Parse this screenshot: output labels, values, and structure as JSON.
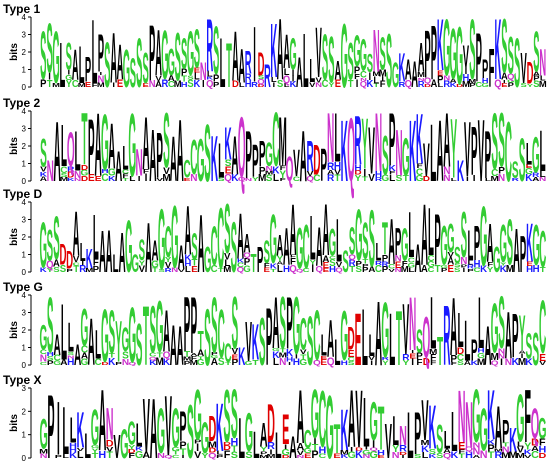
{
  "figure": {
    "panels": [
      {
        "title": "Type 1",
        "ylabel": "bits",
        "yticks": [
          "0",
          "1",
          "2",
          "3",
          "4"
        ],
        "sequence": "SSGLSALPLPSAAGSSSPAGGSSGSNRSLTAARIDRKAAGALLVSSAGSGGSNSSGKAAAPPKGGGVSPPFKSSSVDSN"
      },
      {
        "title": "Type 2",
        "ylabel": "bits",
        "yticks": [
          "0",
          "1",
          "2",
          "3",
          "4"
        ],
        "sequence": "SNALQLTPAGAALGNAAPSAACCGSKLKAQPPPGCMQVARDPNLKQRYVNSPNGKKVLAAYKVPVPSSCSSLGL"
      },
      {
        "title": "Type D",
        "ylabel": "bits",
        "yticks": [
          "0",
          "1",
          "2",
          "3",
          "4"
        ],
        "sequence": "GSSDDALKLAALAGGSAAGCGAASAGCCSSAATPSGAAAGCLAAGLSSGSSLTAPGLAALPGGSSLPGAGGSAPKGC"
      },
      {
        "title": "Type G",
        "ylabel": "bits",
        "yticks": [
          "0",
          "1",
          "2",
          "3",
          "4"
        ],
        "sequence": "GSALLAGALGSYGGSTSGAAAPPTSSCCSKVKSPASPGCSCLALGDELLAGLTVNSQLTRALLPLAGSAPYSSC"
      },
      {
        "title": "Type X",
        "ylabel": "bits",
        "yticks": [
          "0",
          "1",
          "2",
          "3"
        ],
        "sequence": "GPILLKLGANVGGLVAGVGPSGGDKSSLGLADLEAACGCGTKAVLGTVLNLPVKSLLNNGGKAPKGFQG"
      }
    ],
    "letter_colors": {
      "green": "#33cc33",
      "blue": "#1a1aff",
      "red": "#e00000",
      "black": "#000000",
      "purple": "#cc33cc",
      "orange": "#ff8c00",
      "cyan": "#00aacc"
    }
  }
}
